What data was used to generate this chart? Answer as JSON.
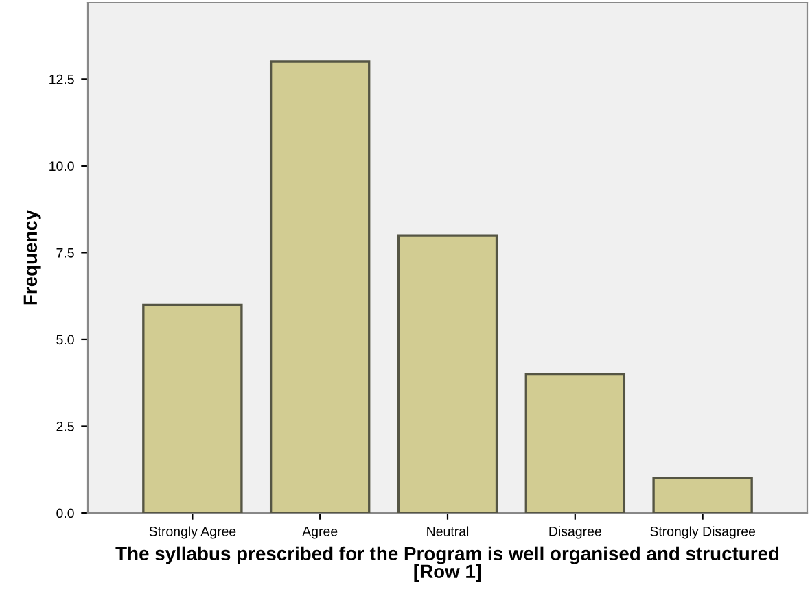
{
  "chart_data": {
    "type": "bar",
    "xlabel": "The syllabus prescribed for the Program is well organised and structured\n[Row 1]",
    "ylabel": "Frequency",
    "categories": [
      "Strongly Agree",
      "Agree",
      "Neutral",
      "Disagree",
      "Strongly Disagree"
    ],
    "values": [
      6,
      13,
      8,
      4,
      1
    ],
    "color": "#d2cc92",
    "ylim": [
      0,
      14.7
    ],
    "yticks": [
      {
        "value": 0,
        "label": "0.0"
      },
      {
        "value": 2.5,
        "label": "2.5"
      },
      {
        "value": 5,
        "label": "5.0"
      },
      {
        "value": 7.5,
        "label": "7.5"
      },
      {
        "value": 10,
        "label": "10.0"
      },
      {
        "value": 12.5,
        "label": "12.5"
      }
    ],
    "grid": false,
    "legend": false
  }
}
